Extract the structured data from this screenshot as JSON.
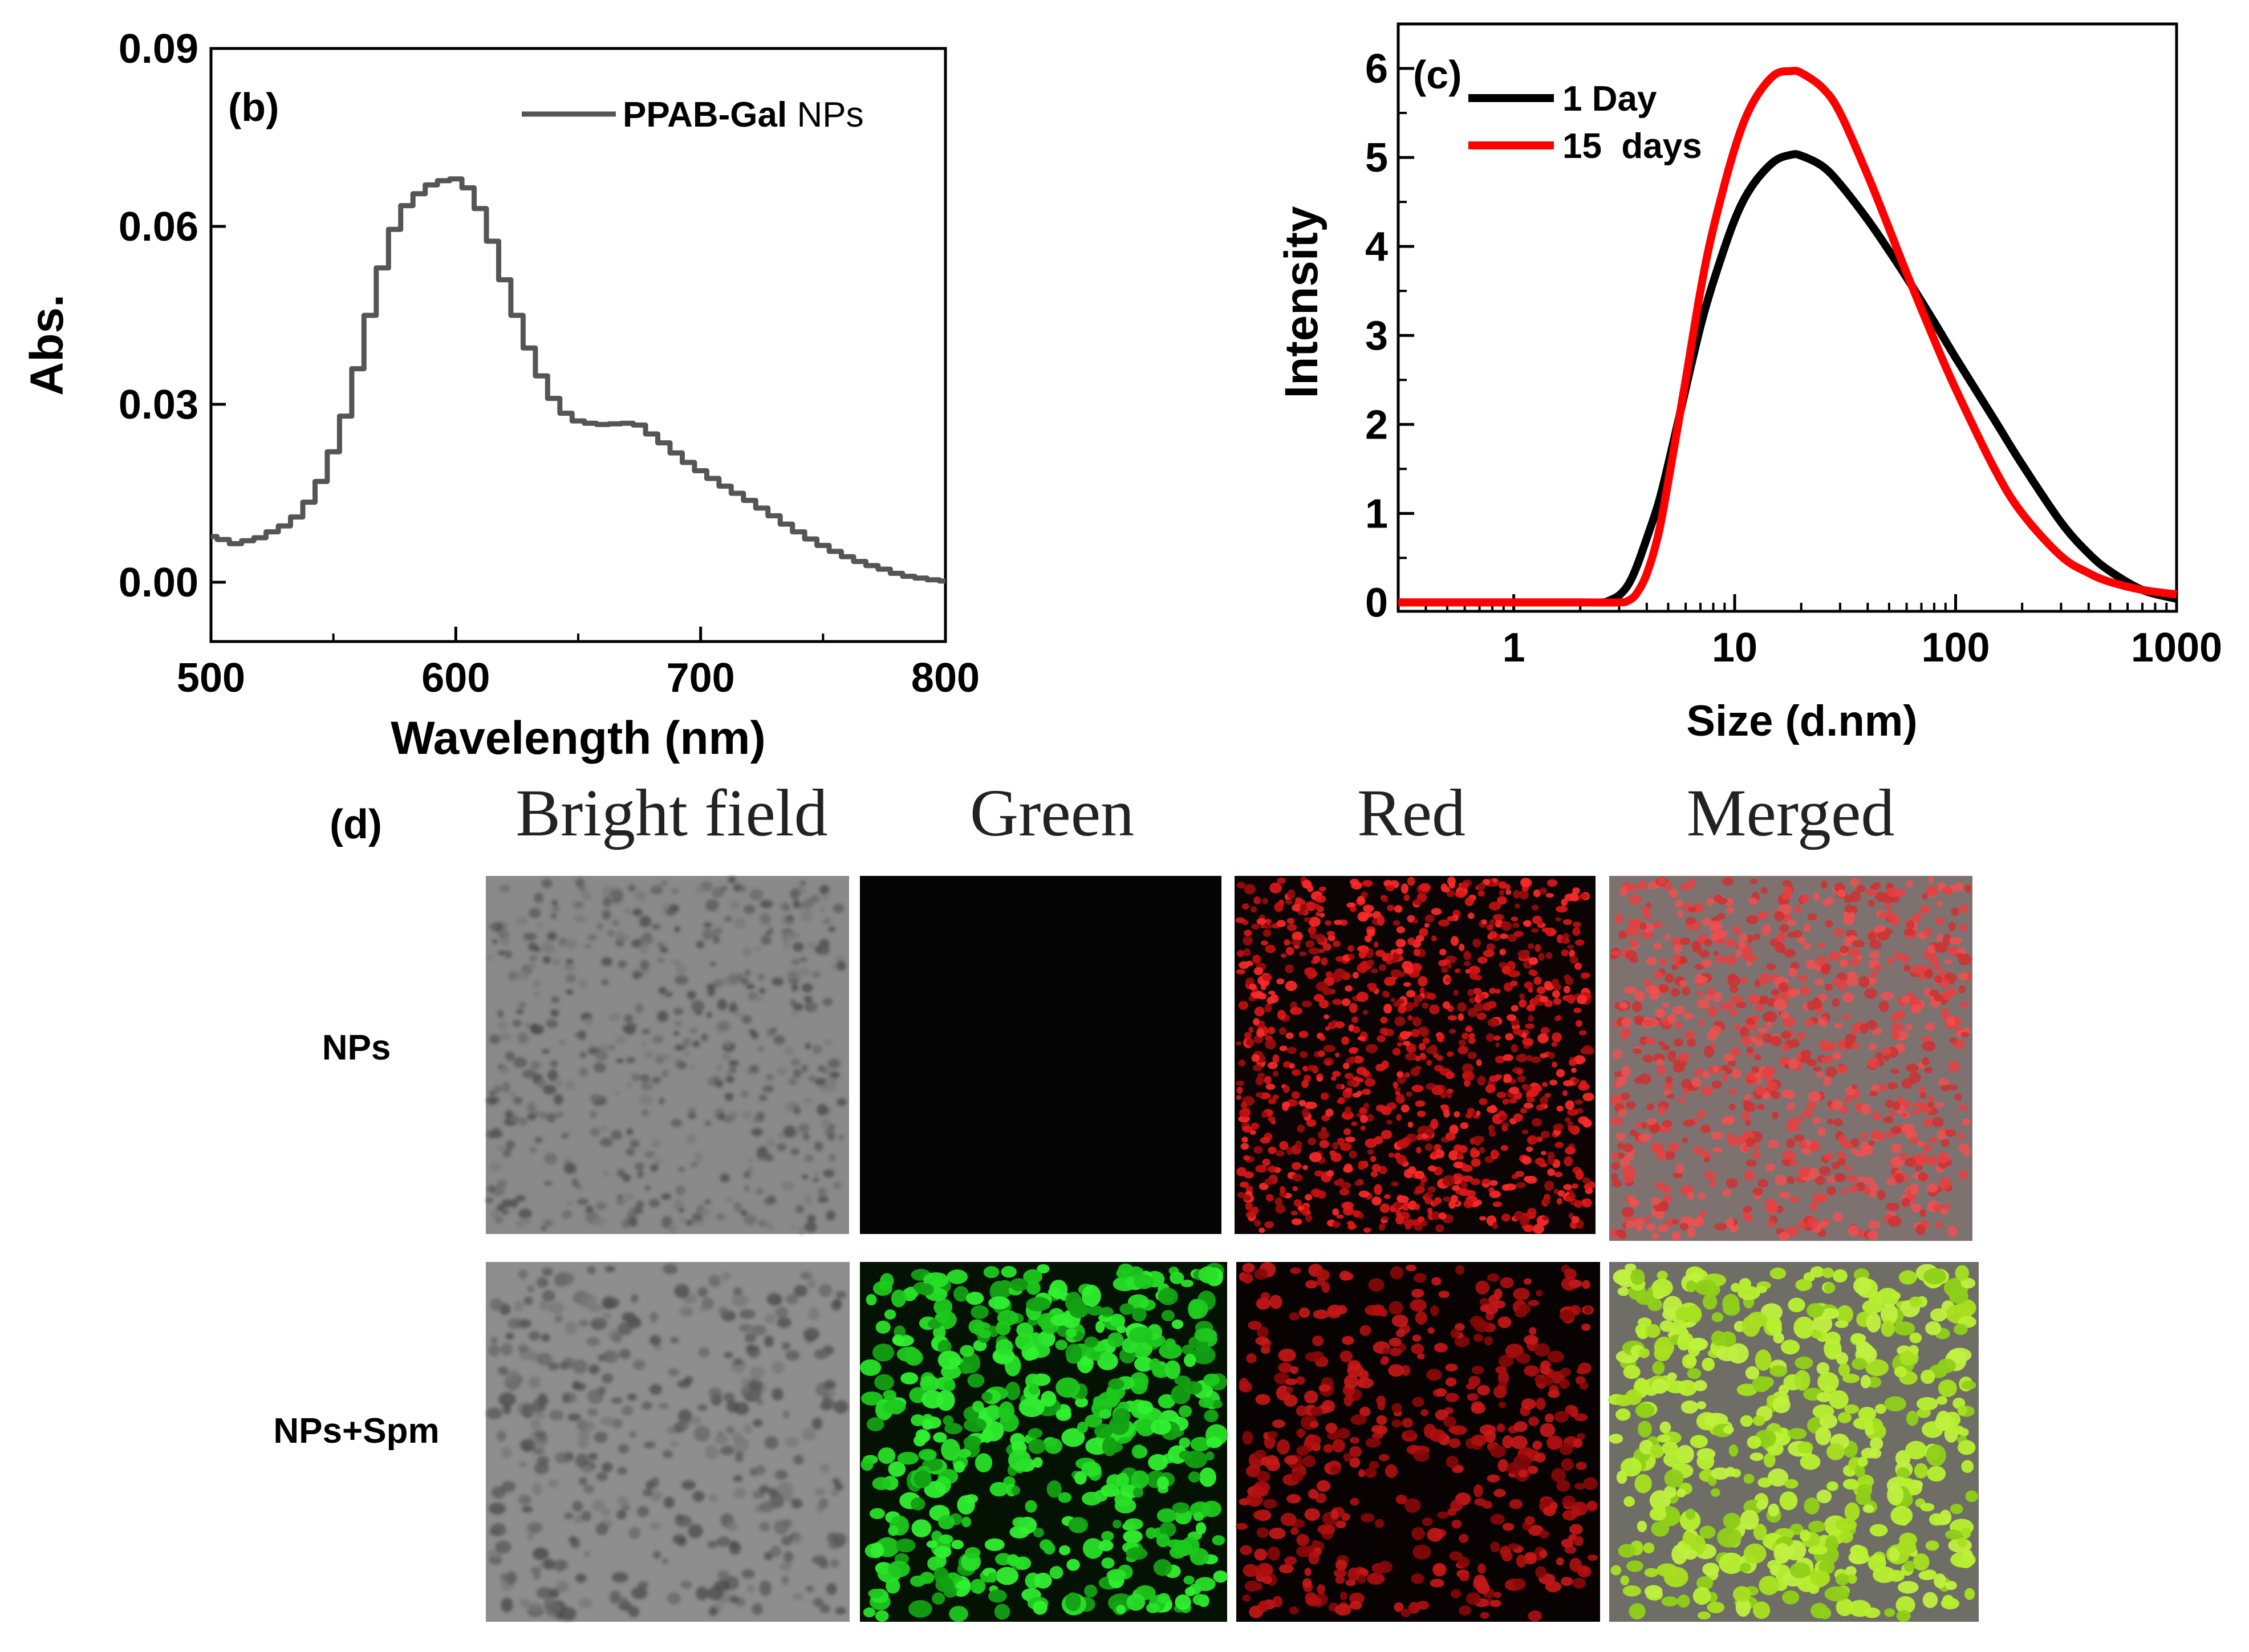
{
  "chart_data": [
    {
      "id": "b",
      "type": "line",
      "panel_label": "(b)",
      "xlabel": "Wavelength (nm)",
      "ylabel": "Abs.",
      "xlim": [
        500,
        800
      ],
      "ylim": [
        -0.01,
        0.09
      ],
      "xticks": [
        500,
        600,
        700,
        800
      ],
      "xtick_labels": [
        "500",
        "600",
        "700",
        "800"
      ],
      "yticks": [
        0.0,
        0.03,
        0.06,
        0.09
      ],
      "ytick_labels": [
        "0.00",
        "0.03",
        "0.06",
        "0.09"
      ],
      "legend": {
        "position": "top-right",
        "entry_bold": "PPAB-Gal",
        "entry_normal": " NPs"
      },
      "series": [
        {
          "name": "PPAB-Gal NPs",
          "color": "#555555",
          "x": [
            500,
            505,
            510,
            515,
            520,
            525,
            530,
            535,
            540,
            545,
            550,
            555,
            560,
            565,
            570,
            575,
            580,
            585,
            590,
            595,
            600,
            605,
            610,
            615,
            620,
            625,
            630,
            635,
            640,
            645,
            650,
            655,
            660,
            665,
            670,
            675,
            680,
            685,
            690,
            695,
            700,
            705,
            710,
            715,
            720,
            725,
            730,
            735,
            740,
            745,
            750,
            755,
            760,
            765,
            770,
            775,
            780,
            785,
            790,
            795,
            800
          ],
          "y": [
            0.0077,
            0.0072,
            0.0065,
            0.007,
            0.0075,
            0.0085,
            0.0095,
            0.011,
            0.0135,
            0.017,
            0.022,
            0.028,
            0.036,
            0.045,
            0.053,
            0.0595,
            0.0635,
            0.0655,
            0.067,
            0.0677,
            0.068,
            0.0665,
            0.063,
            0.0575,
            0.051,
            0.045,
            0.0395,
            0.0348,
            0.031,
            0.0285,
            0.0272,
            0.0268,
            0.0266,
            0.0267,
            0.0268,
            0.0265,
            0.025,
            0.0235,
            0.0218,
            0.0202,
            0.0188,
            0.0175,
            0.0162,
            0.015,
            0.0138,
            0.0125,
            0.0112,
            0.0098,
            0.0085,
            0.0073,
            0.0062,
            0.0052,
            0.0043,
            0.0035,
            0.0028,
            0.0022,
            0.0015,
            0.001,
            0.0007,
            0.0004,
            0.0002
          ]
        }
      ]
    },
    {
      "id": "c",
      "type": "line",
      "panel_label": "(c)",
      "xscale": "log",
      "xlabel": "Size (d.nm)",
      "ylabel": "Intensity",
      "xlim": [
        0.3,
        1000
      ],
      "ylim": [
        -0.1,
        6.5
      ],
      "xticks": [
        1,
        10,
        100,
        1000
      ],
      "xtick_labels": [
        "1",
        "10",
        "100",
        "1000"
      ],
      "yticks": [
        0,
        1,
        2,
        3,
        4,
        5,
        6
      ],
      "ytick_labels": [
        "0",
        "1",
        "2",
        "3",
        "4",
        "5",
        "6"
      ],
      "legend": {
        "position": "top-left"
      },
      "series": [
        {
          "name": "1 Day",
          "color": "#000000",
          "x": [
            0.3,
            1,
            2,
            2.5,
            2.7,
            3,
            3.3,
            3.6,
            4,
            4.5,
            5,
            6,
            7,
            8,
            10,
            12,
            15,
            18,
            20,
            25,
            30,
            40,
            50,
            60,
            80,
            100,
            150,
            200,
            300,
            400,
            500,
            700,
            1000
          ],
          "y": [
            0,
            0,
            0,
            0,
            0.02,
            0.08,
            0.2,
            0.4,
            0.72,
            1.1,
            1.55,
            2.4,
            3.1,
            3.6,
            4.3,
            4.68,
            4.95,
            5.03,
            5.02,
            4.9,
            4.7,
            4.3,
            3.95,
            3.65,
            3.15,
            2.75,
            2.05,
            1.55,
            0.9,
            0.55,
            0.35,
            0.14,
            0.04
          ]
        },
        {
          "name": "15  days",
          "color": "#ff0000",
          "x": [
            0.3,
            1,
            2,
            3,
            3.3,
            3.6,
            4,
            4.5,
            5,
            6,
            7,
            8,
            10,
            12,
            15,
            18,
            20,
            25,
            30,
            40,
            50,
            60,
            80,
            100,
            150,
            200,
            300,
            400,
            500,
            700,
            1000
          ],
          "y": [
            0,
            0,
            0,
            0,
            0.02,
            0.1,
            0.32,
            0.75,
            1.35,
            2.5,
            3.5,
            4.2,
            5.1,
            5.6,
            5.92,
            5.97,
            5.95,
            5.78,
            5.5,
            4.8,
            4.2,
            3.7,
            2.95,
            2.4,
            1.5,
            1.0,
            0.52,
            0.33,
            0.23,
            0.14,
            0.09
          ]
        }
      ]
    }
  ],
  "panel_d": {
    "label": "(d)",
    "columns": [
      "Bright field",
      "Green",
      "Red",
      "Merged"
    ],
    "rows": [
      "NPs",
      "NPs+Spm"
    ]
  },
  "colors": {
    "b_line": "#555555",
    "c_one_day": "#000000",
    "c_fifteen_days": "#ff0000"
  }
}
